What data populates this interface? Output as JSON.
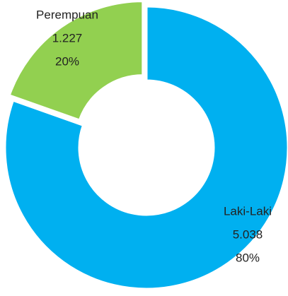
{
  "chart_data": {
    "type": "donut",
    "categories": [
      "Laki-Laki",
      "Perempuan"
    ],
    "values": [
      5038,
      1227
    ],
    "value_labels": [
      "5.038",
      "1.227"
    ],
    "percents": [
      80,
      20
    ],
    "percent_labels": [
      "80%",
      "20%"
    ],
    "colors": [
      "#00B0F0",
      "#92D050"
    ]
  }
}
